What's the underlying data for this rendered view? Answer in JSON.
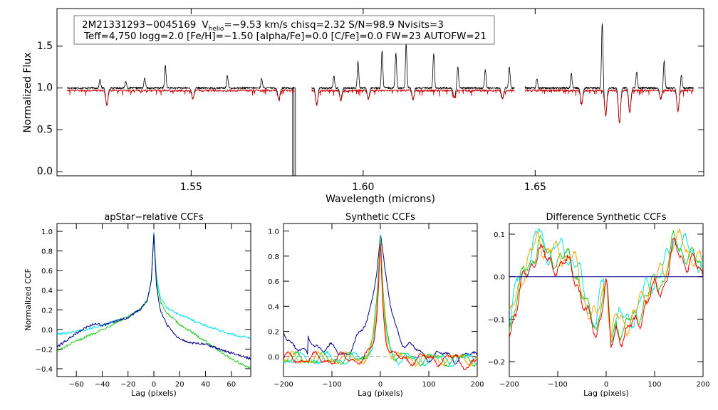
{
  "chart_data": [
    {
      "type": "line",
      "xlabel": "Wavelength (microns)",
      "ylabel": "Normalized Flux",
      "xlim": [
        1.511,
        1.699
      ],
      "ylim": [
        -0.05,
        1.95
      ],
      "xticks": [
        1.55,
        1.6,
        1.65
      ],
      "xtick_labels": [
        "1.55",
        "1.60",
        "1.65"
      ],
      "yticks": [
        0.0,
        0.5,
        1.0,
        1.5
      ],
      "ytick_labels": [
        "0.0",
        "0.5",
        "1.0",
        "1.5"
      ],
      "chips": [
        [
          1.514,
          1.58
        ],
        [
          1.585,
          1.644
        ],
        [
          1.647,
          1.696
        ]
      ],
      "gap_dropout": 1.5795,
      "annotation": {
        "star": "2M21331293−0045169",
        "vhelio_label": "V",
        "vhelio_sub": "helio",
        "line1_rest": "=−9.53 km/s  chisq=2.32  S/N=98.9  Nvisits=3",
        "line2": "Teff=4,750 logg=2.0 [Fe/H]=−1.50 [alpha/Fe]=0.0 [C/Fe]=0.0 FW=23 AUTOFW=21"
      },
      "series": [
        {
          "name": "observed spectrum",
          "color": "#000000",
          "baseline": 1.0
        },
        {
          "name": "model spectrum",
          "color": "#cc0000",
          "baseline": 0.97
        }
      ],
      "emission_spikes": [
        [
          1.5235,
          1.1
        ],
        [
          1.531,
          1.08
        ],
        [
          1.5365,
          1.12
        ],
        [
          1.5425,
          1.27
        ],
        [
          1.5605,
          1.15
        ],
        [
          1.5705,
          1.12
        ],
        [
          1.5915,
          1.14
        ],
        [
          1.5985,
          1.32
        ],
        [
          1.6055,
          1.45
        ],
        [
          1.6095,
          1.42
        ],
        [
          1.6125,
          1.53
        ],
        [
          1.6205,
          1.42
        ],
        [
          1.6275,
          1.26
        ],
        [
          1.6355,
          1.22
        ],
        [
          1.6425,
          1.25
        ],
        [
          1.6465,
          1.48
        ],
        [
          1.6505,
          1.12
        ],
        [
          1.6605,
          1.18
        ],
        [
          1.6695,
          1.78
        ],
        [
          1.6795,
          1.19
        ],
        [
          1.6875,
          1.33
        ],
        [
          1.6925,
          1.16
        ]
      ],
      "absorption_dips": [
        [
          1.5255,
          0.79
        ],
        [
          1.5505,
          0.87
        ],
        [
          1.5755,
          0.86
        ],
        [
          1.5865,
          0.8
        ],
        [
          1.5935,
          0.85
        ],
        [
          1.6015,
          0.87
        ],
        [
          1.6145,
          0.86
        ],
        [
          1.6265,
          0.88
        ],
        [
          1.6405,
          0.87
        ],
        [
          1.6635,
          0.81
        ],
        [
          1.6705,
          0.67
        ],
        [
          1.6745,
          0.58
        ],
        [
          1.6775,
          0.71
        ],
        [
          1.6865,
          0.87
        ],
        [
          1.6915,
          0.72
        ]
      ]
    },
    {
      "type": "line",
      "title": "apStar−relative CCFs",
      "xlabel": "Lag (pixels)",
      "ylabel": "Normalized CCF",
      "xlim": [
        -75,
        75
      ],
      "ylim": [
        -0.48,
        1.08
      ],
      "xticks": [
        -60,
        -40,
        -20,
        0,
        20,
        40,
        60
      ],
      "xtick_labels": [
        "−60",
        "−40",
        "−20",
        "0",
        "20",
        "40",
        "60"
      ],
      "yticks": [
        -0.4,
        -0.2,
        0.0,
        0.2,
        0.4,
        0.6,
        0.8,
        1.0
      ],
      "ytick_labels": [
        "−0.4",
        "−0.2",
        "0.0",
        "0.2",
        "0.4",
        "0.6",
        "0.8",
        "1.0"
      ],
      "series": [
        {
          "name": "cyan",
          "color": "#00e5ee",
          "x": [
            -75,
            -60,
            -40,
            -20,
            -10,
            -5,
            -2,
            0,
            2,
            5,
            10,
            20,
            40,
            60,
            75
          ],
          "y": [
            -0.05,
            -0.02,
            0.04,
            0.13,
            0.21,
            0.3,
            0.5,
            0.99,
            0.55,
            0.33,
            0.22,
            0.15,
            0.04,
            -0.05,
            -0.09
          ]
        },
        {
          "name": "green",
          "color": "#22cc22",
          "x": [
            -75,
            -60,
            -40,
            -20,
            -10,
            -5,
            -2,
            0,
            2,
            5,
            10,
            20,
            40,
            60,
            75
          ],
          "y": [
            -0.22,
            -0.12,
            0.0,
            0.13,
            0.21,
            0.3,
            0.5,
            0.98,
            0.5,
            0.28,
            0.17,
            0.05,
            -0.12,
            -0.3,
            -0.4
          ]
        },
        {
          "name": "navy",
          "color": "#00008b",
          "x": [
            -75,
            -60,
            -50,
            -45,
            -40,
            -20,
            -10,
            -5,
            -2,
            0,
            2,
            5,
            10,
            20,
            30,
            40,
            60,
            75
          ],
          "y": [
            -0.18,
            -0.04,
            0.04,
            0.06,
            0.04,
            0.12,
            0.21,
            0.3,
            0.5,
            0.97,
            0.45,
            0.2,
            0.05,
            -0.1,
            -0.14,
            -0.15,
            -0.24,
            -0.3
          ]
        }
      ]
    },
    {
      "type": "line",
      "title": "Synthetic CCFs",
      "xlabel": "Lag (pixels)",
      "xlim": [
        -200,
        200
      ],
      "ylim": [
        -0.16,
        1.06
      ],
      "xticks": [
        -200,
        -100,
        0,
        100,
        200
      ],
      "xtick_labels": [
        "−200",
        "−100",
        "0",
        "100",
        "200"
      ],
      "yticks": [
        0.0,
        0.2,
        0.4,
        0.6,
        0.8,
        1.0
      ],
      "ytick_labels": [
        "0.0",
        "0.2",
        "0.4",
        "0.6",
        "0.8",
        "1.0"
      ],
      "zero_line": 0.0,
      "series": [
        {
          "name": "navy",
          "color": "#00008b",
          "peak": 0.99,
          "width": 30,
          "left": 0.22,
          "right": 0.02
        },
        {
          "name": "cyan",
          "color": "#00e5ee",
          "peak": 1.0,
          "width": 11,
          "left": 0.02,
          "right": 0.0
        },
        {
          "name": "green",
          "color": "#22cc22",
          "peak": 1.0,
          "width": 12,
          "left": 0.0,
          "right": -0.04
        },
        {
          "name": "orange",
          "color": "#ffa500",
          "peak": 1.0,
          "width": 10,
          "left": 0.01,
          "right": -0.01
        },
        {
          "name": "red",
          "color": "#ee0000",
          "peak": 1.0,
          "width": 9,
          "left": 0.03,
          "right": -0.06
        }
      ]
    },
    {
      "type": "line",
      "title": "Difference Synthetic CCFs",
      "xlabel": "Lag (pixels)",
      "xlim": [
        -200,
        200
      ],
      "ylim": [
        -0.235,
        0.125
      ],
      "xticks": [
        -200,
        -100,
        0,
        100,
        200
      ],
      "xtick_labels": [
        "−200",
        "−100",
        "0",
        "100",
        "200"
      ],
      "yticks": [
        -0.2,
        -0.1,
        0.0,
        0.1
      ],
      "ytick_labels": [
        "−0.2",
        "−0.1",
        "0.0",
        "0.1"
      ],
      "zero_line": 0.0,
      "shape_x": [
        -200,
        -180,
        -160,
        -140,
        -120,
        -100,
        -80,
        -60,
        -40,
        -20,
        -10,
        0,
        10,
        20,
        40,
        60,
        80,
        100,
        120,
        140,
        160,
        180,
        200
      ],
      "shape_y": [
        -0.12,
        -0.02,
        0.02,
        0.09,
        0.04,
        0.05,
        0.04,
        0.01,
        -0.08,
        -0.12,
        -0.05,
        0.0,
        -0.16,
        -0.11,
        -0.12,
        -0.1,
        -0.05,
        -0.02,
        0.0,
        0.08,
        0.06,
        0.04,
        0.02
      ],
      "series": [
        {
          "name": "cyan",
          "color": "#00e5ee",
          "offset": 0.015,
          "seed": 3
        },
        {
          "name": "green",
          "color": "#22cc22",
          "offset": 0.0,
          "seed": 7
        },
        {
          "name": "orange",
          "color": "#ffa500",
          "offset": 0.01,
          "seed": 11
        },
        {
          "name": "red",
          "color": "#ee0000",
          "offset": -0.015,
          "seed": 13
        },
        {
          "name": "navy",
          "color": "#00008b",
          "flat": 0.0
        }
      ]
    }
  ]
}
